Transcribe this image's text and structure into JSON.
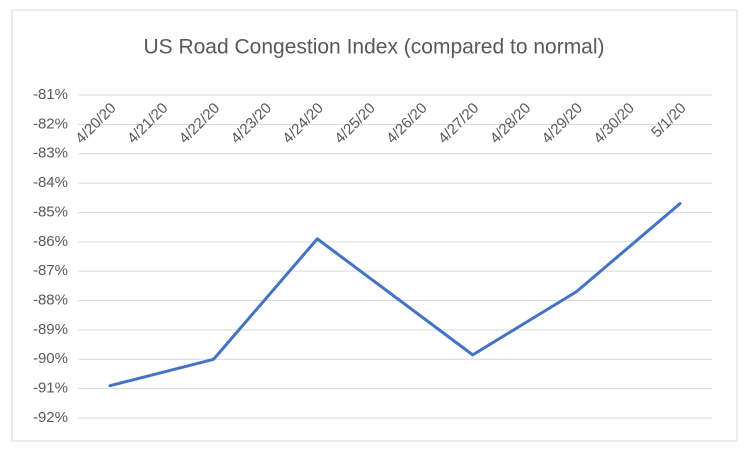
{
  "chart_data": {
    "type": "line",
    "title": "US Road Congestion Index (compared to normal)",
    "x": [
      "4/20/20",
      "4/22/20",
      "4/24/20",
      "4/27/20",
      "4/29/20",
      "5/1/20"
    ],
    "series": [
      {
        "name": "US Road Congestion Index",
        "color": "#4472c4",
        "values": [
          -90.9,
          -90.0,
          -85.9,
          -89.85,
          -87.7,
          -84.7
        ]
      }
    ],
    "xticks": [
      "4/20/20",
      "4/21/20",
      "4/22/20",
      "4/23/20",
      "4/24/20",
      "4/25/20",
      "4/26/20",
      "4/27/20",
      "4/28/20",
      "4/29/20",
      "4/30/20",
      "5/1/20"
    ],
    "ylim": [
      -92,
      -81
    ],
    "yticks": [
      {
        "value": -81,
        "label": "-81%"
      },
      {
        "value": -82,
        "label": "-82%"
      },
      {
        "value": -83,
        "label": "-83%"
      },
      {
        "value": -84,
        "label": "-84%"
      },
      {
        "value": -85,
        "label": "-85%"
      },
      {
        "value": -86,
        "label": "-86%"
      },
      {
        "value": -87,
        "label": "-87%"
      },
      {
        "value": -88,
        "label": "-88%"
      },
      {
        "value": -89,
        "label": "-89%"
      },
      {
        "value": -90,
        "label": "-90%"
      },
      {
        "value": -91,
        "label": "-91%"
      },
      {
        "value": -92,
        "label": "-92%"
      }
    ],
    "grid": true
  }
}
